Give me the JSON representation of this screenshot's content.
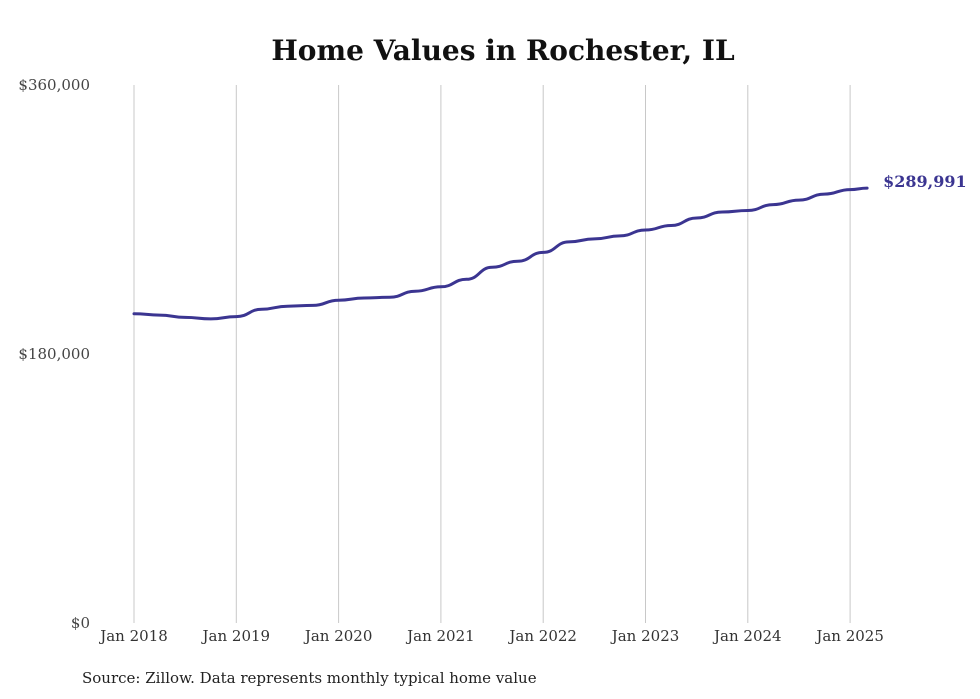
{
  "chart_data": {
    "type": "line",
    "title": "Home Values in Rochester, IL",
    "source": "Source: Zillow. Data represents monthly typical home value",
    "ylim": [
      0,
      360000
    ],
    "y_ticks": [
      {
        "value": 0,
        "label": "$0"
      },
      {
        "value": 180000,
        "label": "$180,000"
      },
      {
        "value": 360000,
        "label": "$360,000"
      }
    ],
    "x_ticks": [
      {
        "value": "2018-01",
        "label": "Jan 2018"
      },
      {
        "value": "2019-01",
        "label": "Jan 2019"
      },
      {
        "value": "2020-01",
        "label": "Jan 2020"
      },
      {
        "value": "2021-01",
        "label": "Jan 2021"
      },
      {
        "value": "2022-01",
        "label": "Jan 2022"
      },
      {
        "value": "2023-01",
        "label": "Jan 2023"
      },
      {
        "value": "2024-01",
        "label": "Jan 2024"
      },
      {
        "value": "2025-01",
        "label": "Jan 2025"
      }
    ],
    "grid": "vertical",
    "line_color": "#3b3591",
    "end_label": "$289,991",
    "series": [
      {
        "x": [
          "2018-01",
          "2018-04",
          "2018-07",
          "2018-10",
          "2019-01",
          "2019-04",
          "2019-07",
          "2019-10",
          "2020-01",
          "2020-04",
          "2020-07",
          "2020-10",
          "2021-01",
          "2021-04",
          "2021-07",
          "2021-10",
          "2022-01",
          "2022-04",
          "2022-07",
          "2022-10",
          "2023-01",
          "2023-04",
          "2023-07",
          "2023-10",
          "2024-01",
          "2024-04",
          "2024-07",
          "2024-10",
          "2025-01",
          "2025-03"
        ],
        "values": [
          207000,
          206000,
          204500,
          203500,
          205000,
          210000,
          212000,
          212500,
          216000,
          217500,
          218000,
          222000,
          225000,
          230000,
          238000,
          242000,
          248000,
          255000,
          257000,
          259000,
          263000,
          266000,
          271000,
          275000,
          276000,
          280000,
          283000,
          287000,
          290000,
          291000
        ]
      }
    ]
  }
}
